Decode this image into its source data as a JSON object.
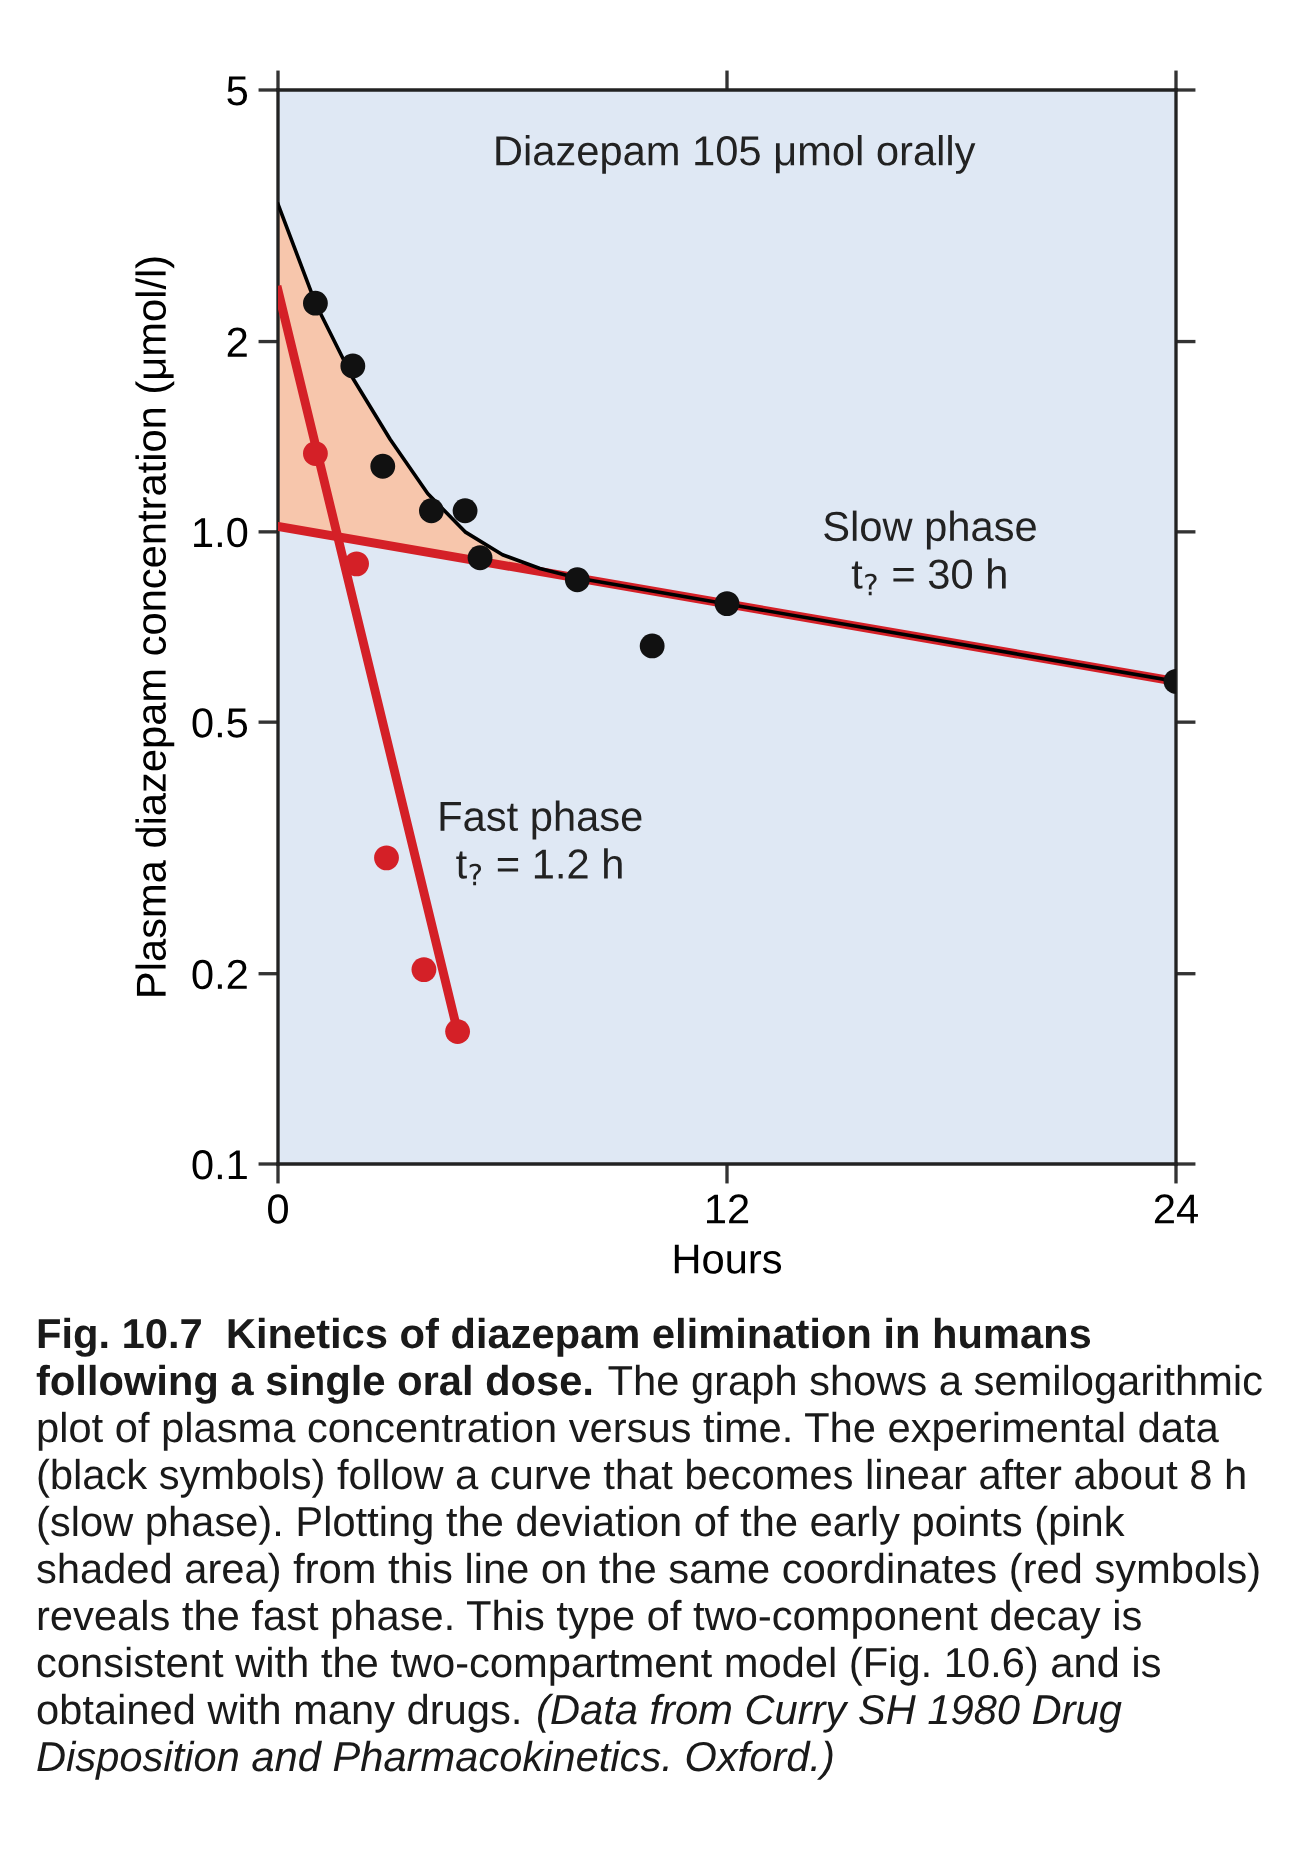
{
  "chart_data": {
    "type": "scatter",
    "ylabel": "Plasma diazepam concentration (μmol/l)",
    "xlabel": "Hours",
    "log": "y",
    "xlim": [
      0,
      24
    ],
    "xticks": [
      0,
      12,
      24
    ],
    "ylim": [
      0.1,
      5
    ],
    "yticks": [
      0.1,
      0.2,
      0.5,
      {
        "value": 1,
        "label": "1.0"
      },
      2,
      5
    ],
    "grid": false,
    "legend": false,
    "series": [
      {
        "type": "line",
        "color": "#d42027",
        "x": [
          0,
          24
        ],
        "values": [
          1.02,
          0.58
        ]
      },
      {
        "type": "line",
        "color": "#d42027",
        "x": [
          0,
          4.8
        ],
        "values": [
          2.41,
          0.162
        ]
      },
      {
        "type": "line",
        "color": "#000000",
        "x": [
          0,
          1,
          2,
          3,
          4,
          5,
          6,
          7,
          8,
          12,
          24
        ],
        "values": [
          3.3,
          2.3,
          1.75,
          1.4,
          1.15,
          1.0,
          0.92,
          0.875,
          0.845,
          0.769,
          0.58
        ],
        "lower": [
          1.02,
          0.996,
          0.973,
          0.95,
          0.928,
          0.906,
          0.885,
          0.865,
          0.845,
          0.769,
          0.58
        ],
        "upper": [
          3.3,
          2.3,
          1.75,
          1.4,
          1.15,
          1.0,
          0.92,
          0.875,
          0.845,
          0.769,
          0.58
        ]
      },
      {
        "color": "#111111",
        "marker": "circle",
        "x": [
          1.0,
          2.0,
          2.8,
          4.1,
          5.0,
          5.4,
          8.0,
          10.0,
          12.0,
          24.0
        ],
        "values": [
          2.3,
          1.83,
          1.27,
          1.08,
          1.08,
          0.91,
          0.84,
          0.66,
          0.77,
          0.58
        ]
      },
      {
        "color": "#d42027",
        "marker": "circle",
        "x": [
          1.0,
          2.1,
          2.9,
          3.9,
          4.8
        ],
        "values": [
          1.33,
          0.89,
          0.305,
          0.203,
          0.162
        ]
      }
    ],
    "annotations": [
      "Diazepam 105 μmol orally",
      "Slow phase\nt$_{?}$ = 30 h",
      "Fast phase\nt$_{?}$ = 1.2 h",
      "Fig. 10.7  Kinetics of diazepam elimination in humans",
      "following a single oral dose.",
      " The graph shows a semilogarithmic",
      "plot of plasma concentration versus time. The experimental data",
      "(black symbols) follow a curve that becomes linear after about 8 h",
      "(slow phase). Plotting the deviation of the early points (pink",
      "shaded area) from this line on the same coordinates (red symbols)",
      "reveals the fast phase. This type of two-component decay is",
      "consistent with the two-compartment model (Fig. 10.6) and is",
      "obtained with many drugs.",
      " (Data from Curry SH 1980 Drug",
      "Disposition and Pharmacokinetics. Oxford.)"
    ]
  }
}
